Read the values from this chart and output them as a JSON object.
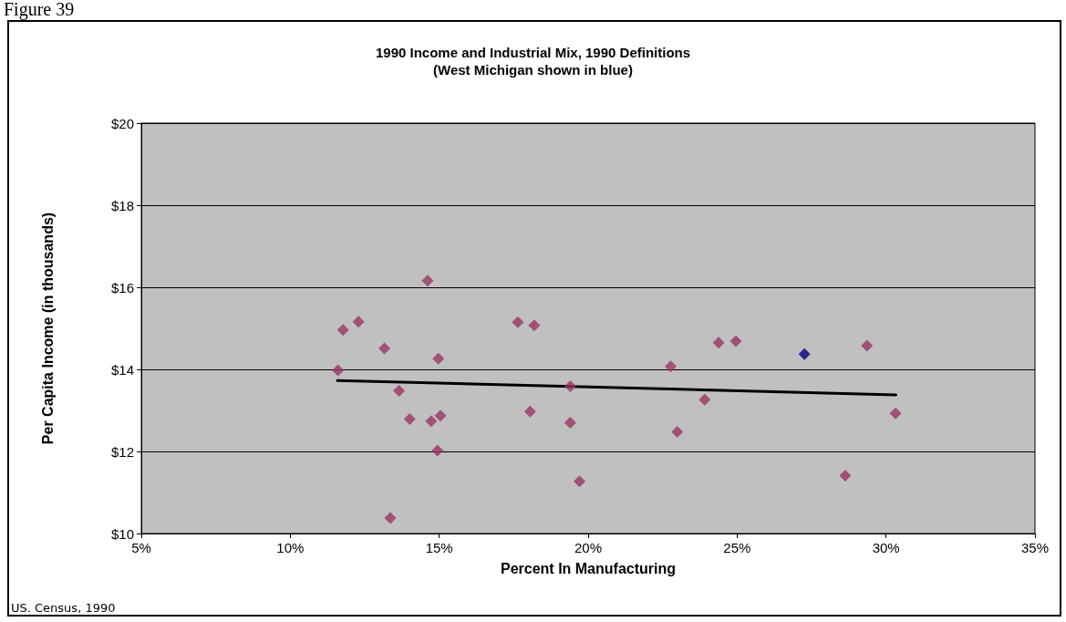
{
  "chart_data": {
    "type": "scatter",
    "title": "1990 Income and Industrial Mix, 1990 Definitions",
    "subtitle": "(West Michigan shown in blue)",
    "xlabel": "Percent In Manufacturing",
    "ylabel": "Per Capita Income (in thousands)",
    "annotations": [
      "Figure 39",
      "US. Census, 1990"
    ],
    "series": [
      {
        "color": "#993366",
        "x": [
          14.61,
          11.77,
          12.29,
          13.16,
          11.6,
          14.97,
          13.65,
          14.01,
          14.73,
          15.04,
          14.94,
          13.36,
          17.64,
          18.19,
          19.4,
          18.05,
          19.4,
          19.71,
          22.77,
          24.38,
          24.96,
          23.91,
          22.99,
          29.36,
          30.32,
          28.63
        ],
        "values": [
          16.16,
          14.96,
          15.16,
          14.51,
          13.98,
          14.26,
          13.48,
          12.79,
          12.74,
          12.87,
          12.02,
          10.38,
          15.15,
          15.07,
          13.59,
          12.97,
          12.7,
          11.27,
          14.07,
          14.65,
          14.69,
          13.26,
          12.48,
          14.58,
          12.93,
          11.41
        ]
      },
      {
        "color": "#000080",
        "x": [
          27.26
        ],
        "values": [
          14.37
        ]
      },
      {
        "type": "line",
        "marker": "none",
        "color": "#000000",
        "x": [
          11.58,
          30.33
        ],
        "values": [
          13.73,
          13.38
        ]
      }
    ],
    "xlim": [
      5,
      35
    ],
    "xticks": [
      {
        "value": 5,
        "label": "5%"
      },
      {
        "value": 10,
        "label": "10%"
      },
      {
        "value": 15,
        "label": "15%"
      },
      {
        "value": 20,
        "label": "20%"
      },
      {
        "value": 25,
        "label": "25%"
      },
      {
        "value": 30,
        "label": "30%"
      },
      {
        "value": 35,
        "label": "35%"
      }
    ],
    "ylim": [
      10,
      20
    ],
    "yticks": [
      {
        "value": 10,
        "label": "$10"
      },
      {
        "value": 12,
        "label": "$12"
      },
      {
        "value": 14,
        "label": "$14"
      },
      {
        "value": 16,
        "label": "$16"
      },
      {
        "value": 18,
        "label": "$18"
      },
      {
        "value": 20,
        "label": "$20"
      }
    ],
    "grid": "y",
    "marker": "diamond",
    "line_style": "solid"
  }
}
